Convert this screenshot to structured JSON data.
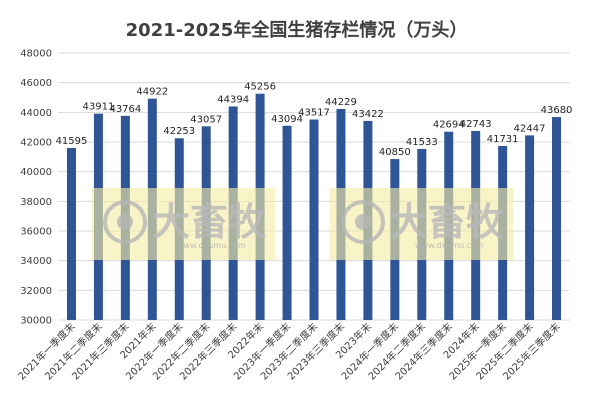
{
  "chart_data": {
    "type": "bar",
    "title": "2021-2025年全国生猪存栏情况（万头）",
    "xlabel": "",
    "ylabel": "",
    "ylim": [
      30000,
      48000
    ],
    "yticks": [
      30000,
      32000,
      34000,
      36000,
      38000,
      40000,
      42000,
      44000,
      46000,
      48000
    ],
    "grid": true,
    "legend": "none",
    "bar_color": "#2F5597",
    "categories": [
      "2021年一季度末",
      "2021年二季度末",
      "2021年三季度末",
      "2021年末",
      "2022年一季度末",
      "2022年二季度末",
      "2022年三季度末",
      "2022年末",
      "2023年一季度末",
      "2023年二季度末",
      "2023年三季度末",
      "2023年末",
      "2024年一季度末",
      "2024年二季度末",
      "2024年三季度末",
      "2024年末",
      "2025年一季度末",
      "2025年二季度末",
      "2025年三季度末"
    ],
    "values": [
      41595,
      43911,
      43764,
      44922,
      42253,
      43057,
      44394,
      45256,
      43094,
      43517,
      44229,
      43422,
      40850,
      41533,
      42694,
      42743,
      41731,
      42447,
      43680
    ]
  },
  "watermark": {
    "brand": "大畜牧",
    "url": "www.dxumu.com"
  }
}
